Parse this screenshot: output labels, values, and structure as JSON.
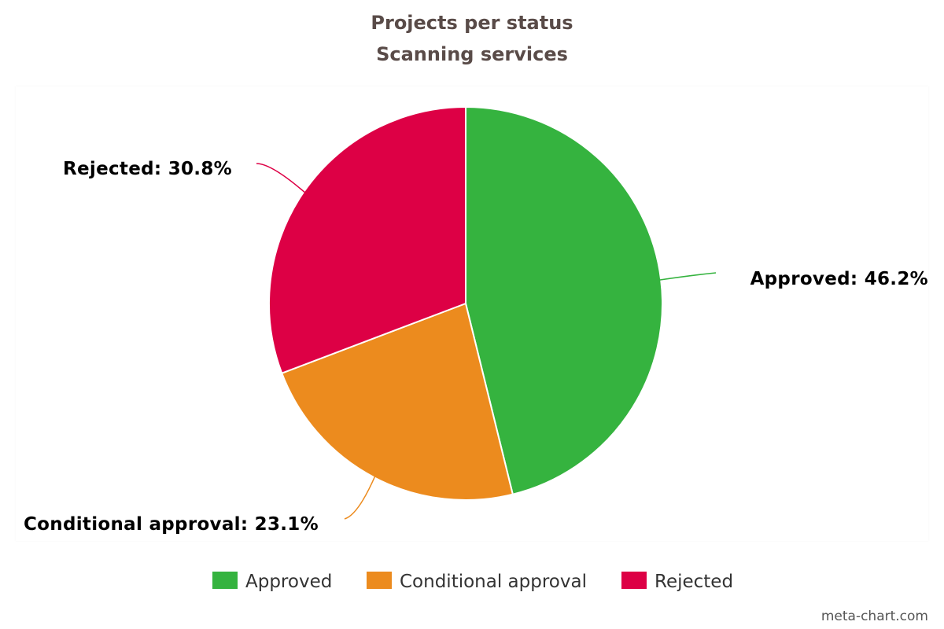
{
  "chart_data": {
    "type": "pie",
    "title": "Projects per status",
    "subtitle": "Scanning services",
    "slices": [
      {
        "label": "Approved",
        "value": 46.2,
        "display": "Approved: 46.2%",
        "color": "#35b33f"
      },
      {
        "label": "Conditional approval",
        "value": 23.1,
        "display": "Conditional approval: 23.1%",
        "color": "#ec8b1e"
      },
      {
        "label": "Rejected",
        "value": 30.8,
        "display": "Rejected: 30.8%",
        "color": "#dd0045"
      }
    ],
    "legend": {
      "position": "bottom",
      "items": [
        "Approved",
        "Conditional approval",
        "Rejected"
      ]
    },
    "start_angle": "top",
    "direction": "clockwise"
  },
  "credit": "meta-chart.com"
}
